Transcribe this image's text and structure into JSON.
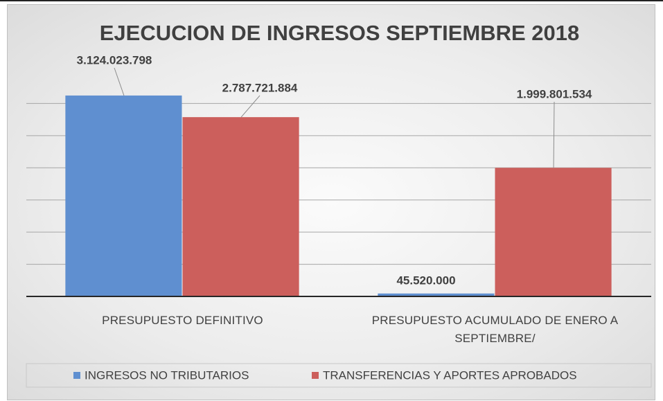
{
  "chart_data": {
    "type": "bar",
    "title": "EJECUCION DE INGRESOS SEPTIEMBRE 2018",
    "categories": [
      "PRESUPUESTO DEFINITIVO",
      "PRESUPUESTO ACUMULADO DE ENERO A SEPTIEMBRE/"
    ],
    "series": [
      {
        "name": "INGRESOS NO TRIBUTARIOS",
        "color": "#5f8fd0",
        "values": [
          3124023798,
          45520000
        ],
        "value_labels": [
          "3.124.023.798",
          "45.520.000"
        ]
      },
      {
        "name": "TRANSFERENCIAS Y APORTES APROBADOS",
        "color": "#cc5f5c",
        "values": [
          2787721884,
          1999801534
        ],
        "value_labels": [
          "2.787.721.884",
          "1.999.801.534"
        ]
      }
    ],
    "ylim": [
      0,
      3500000000
    ],
    "yticks": [
      0,
      500000000,
      1000000000,
      1500000000,
      2000000000,
      2500000000,
      3000000000
    ],
    "grid": true,
    "legend": "bottom"
  }
}
